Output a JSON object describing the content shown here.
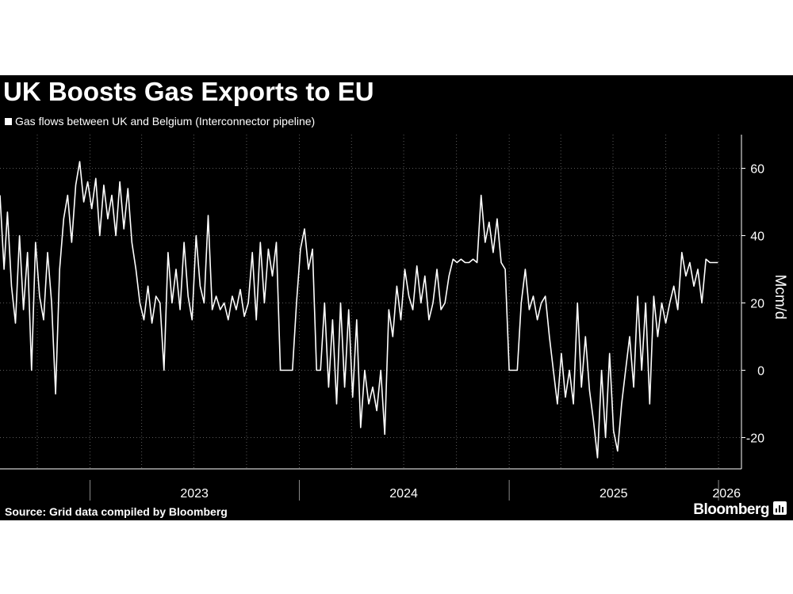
{
  "title": "UK Boosts Gas Exports to EU",
  "legend": {
    "label": "Gas flows between UK and Belgium (Interconnector pipeline)"
  },
  "source": "Source: Grid data compiled by Bloomberg",
  "brand": {
    "name": "Bloomberg",
    "icon": "bloomberg-bars-icon"
  },
  "colors": {
    "background": "#000000",
    "line": "#ffffff",
    "grid": "#5a5a5a",
    "text": "#ffffff"
  },
  "chart_data": {
    "type": "line",
    "title": "UK Boosts Gas Exports to EU",
    "ylabel": "Mcm/d",
    "xlabel": "",
    "ylim": [
      -30,
      70
    ],
    "yticks": [
      -20,
      0,
      20,
      40,
      60
    ],
    "xlim": [
      "2022-07-28",
      "2026-02-10"
    ],
    "xticks": [
      {
        "label": "2023",
        "date": "2023-07-02"
      },
      {
        "label": "2024",
        "date": "2024-07-01"
      },
      {
        "label": "2025",
        "date": "2025-07-02"
      },
      {
        "label": "2026",
        "date": "2026-01-15"
      }
    ],
    "year_boundaries": [
      "2023-01-01",
      "2024-01-01",
      "2025-01-01",
      "2026-01-01"
    ],
    "grid": true,
    "legend_position": "top-left",
    "series": [
      {
        "name": "Gas flows between UK and Belgium (Interconnector pipeline)",
        "points": [
          [
            "2022-07-28",
            52
          ],
          [
            "2022-08-04",
            30
          ],
          [
            "2022-08-10",
            47
          ],
          [
            "2022-08-17",
            25
          ],
          [
            "2022-08-24",
            14
          ],
          [
            "2022-08-31",
            40
          ],
          [
            "2022-09-07",
            18
          ],
          [
            "2022-09-14",
            35
          ],
          [
            "2022-09-21",
            0
          ],
          [
            "2022-09-28",
            38
          ],
          [
            "2022-10-05",
            22
          ],
          [
            "2022-10-12",
            15
          ],
          [
            "2022-10-19",
            35
          ],
          [
            "2022-10-26",
            20
          ],
          [
            "2022-11-02",
            -7
          ],
          [
            "2022-11-09",
            30
          ],
          [
            "2022-11-16",
            45
          ],
          [
            "2022-11-23",
            52
          ],
          [
            "2022-11-30",
            38
          ],
          [
            "2022-12-07",
            55
          ],
          [
            "2022-12-14",
            62
          ],
          [
            "2022-12-21",
            50
          ],
          [
            "2022-12-28",
            56
          ],
          [
            "2023-01-04",
            48
          ],
          [
            "2023-01-11",
            57
          ],
          [
            "2023-01-18",
            40
          ],
          [
            "2023-01-25",
            55
          ],
          [
            "2023-02-01",
            45
          ],
          [
            "2023-02-08",
            52
          ],
          [
            "2023-02-15",
            40
          ],
          [
            "2023-02-22",
            56
          ],
          [
            "2023-03-01",
            42
          ],
          [
            "2023-03-08",
            54
          ],
          [
            "2023-03-15",
            38
          ],
          [
            "2023-03-22",
            30
          ],
          [
            "2023-03-29",
            20
          ],
          [
            "2023-04-05",
            15
          ],
          [
            "2023-04-12",
            25
          ],
          [
            "2023-04-19",
            14
          ],
          [
            "2023-04-26",
            22
          ],
          [
            "2023-05-03",
            20
          ],
          [
            "2023-05-10",
            0
          ],
          [
            "2023-05-17",
            35
          ],
          [
            "2023-05-24",
            20
          ],
          [
            "2023-05-31",
            30
          ],
          [
            "2023-06-07",
            18
          ],
          [
            "2023-06-14",
            38
          ],
          [
            "2023-06-21",
            22
          ],
          [
            "2023-06-28",
            15
          ],
          [
            "2023-07-05",
            40
          ],
          [
            "2023-07-12",
            25
          ],
          [
            "2023-07-19",
            20
          ],
          [
            "2023-07-26",
            46
          ],
          [
            "2023-08-02",
            18
          ],
          [
            "2023-08-09",
            22
          ],
          [
            "2023-08-16",
            18
          ],
          [
            "2023-08-23",
            20
          ],
          [
            "2023-08-30",
            15
          ],
          [
            "2023-09-06",
            22
          ],
          [
            "2023-09-13",
            18
          ],
          [
            "2023-09-20",
            24
          ],
          [
            "2023-09-27",
            16
          ],
          [
            "2023-10-04",
            20
          ],
          [
            "2023-10-11",
            35
          ],
          [
            "2023-10-18",
            15
          ],
          [
            "2023-10-25",
            38
          ],
          [
            "2023-11-01",
            20
          ],
          [
            "2023-11-08",
            36
          ],
          [
            "2023-11-15",
            28
          ],
          [
            "2023-11-22",
            38
          ],
          [
            "2023-11-29",
            0
          ],
          [
            "2023-12-06",
            0
          ],
          [
            "2023-12-13",
            0
          ],
          [
            "2023-12-20",
            0
          ],
          [
            "2023-12-27",
            20
          ],
          [
            "2024-01-03",
            36
          ],
          [
            "2024-01-10",
            42
          ],
          [
            "2024-01-17",
            30
          ],
          [
            "2024-01-24",
            36
          ],
          [
            "2024-01-31",
            0
          ],
          [
            "2024-02-07",
            0
          ],
          [
            "2024-02-14",
            20
          ],
          [
            "2024-02-21",
            -5
          ],
          [
            "2024-02-28",
            15
          ],
          [
            "2024-03-06",
            -10
          ],
          [
            "2024-03-13",
            20
          ],
          [
            "2024-03-20",
            -5
          ],
          [
            "2024-03-27",
            18
          ],
          [
            "2024-04-03",
            -8
          ],
          [
            "2024-04-10",
            15
          ],
          [
            "2024-04-17",
            -17
          ],
          [
            "2024-04-24",
            0
          ],
          [
            "2024-05-01",
            -10
          ],
          [
            "2024-05-08",
            -5
          ],
          [
            "2024-05-15",
            -12
          ],
          [
            "2024-05-22",
            0
          ],
          [
            "2024-05-29",
            -19
          ],
          [
            "2024-06-05",
            18
          ],
          [
            "2024-06-12",
            10
          ],
          [
            "2024-06-19",
            25
          ],
          [
            "2024-06-26",
            15
          ],
          [
            "2024-07-03",
            30
          ],
          [
            "2024-07-10",
            22
          ],
          [
            "2024-07-17",
            18
          ],
          [
            "2024-07-24",
            31
          ],
          [
            "2024-07-31",
            20
          ],
          [
            "2024-08-07",
            28
          ],
          [
            "2024-08-14",
            15
          ],
          [
            "2024-08-21",
            20
          ],
          [
            "2024-08-28",
            30
          ],
          [
            "2024-09-04",
            18
          ],
          [
            "2024-09-11",
            20
          ],
          [
            "2024-09-18",
            28
          ],
          [
            "2024-09-25",
            33
          ],
          [
            "2024-10-02",
            32
          ],
          [
            "2024-10-09",
            33
          ],
          [
            "2024-10-16",
            32
          ],
          [
            "2024-10-23",
            32
          ],
          [
            "2024-10-30",
            33
          ],
          [
            "2024-11-06",
            32
          ],
          [
            "2024-11-13",
            52
          ],
          [
            "2024-11-20",
            38
          ],
          [
            "2024-11-27",
            44
          ],
          [
            "2024-12-04",
            35
          ],
          [
            "2024-12-11",
            45
          ],
          [
            "2024-12-18",
            32
          ],
          [
            "2024-12-25",
            30
          ],
          [
            "2025-01-01",
            0
          ],
          [
            "2025-01-08",
            0
          ],
          [
            "2025-01-15",
            0
          ],
          [
            "2025-01-22",
            20
          ],
          [
            "2025-01-29",
            30
          ],
          [
            "2025-02-05",
            18
          ],
          [
            "2025-02-12",
            22
          ],
          [
            "2025-02-19",
            15
          ],
          [
            "2025-02-26",
            20
          ],
          [
            "2025-03-05",
            22
          ],
          [
            "2025-03-12",
            10
          ],
          [
            "2025-03-19",
            0
          ],
          [
            "2025-03-26",
            -10
          ],
          [
            "2025-04-02",
            5
          ],
          [
            "2025-04-09",
            -8
          ],
          [
            "2025-04-16",
            0
          ],
          [
            "2025-04-23",
            -10
          ],
          [
            "2025-04-30",
            20
          ],
          [
            "2025-05-07",
            -5
          ],
          [
            "2025-05-14",
            10
          ],
          [
            "2025-05-21",
            -6
          ],
          [
            "2025-05-28",
            -15
          ],
          [
            "2025-06-04",
            -26
          ],
          [
            "2025-06-11",
            0
          ],
          [
            "2025-06-18",
            -20
          ],
          [
            "2025-06-25",
            5
          ],
          [
            "2025-07-02",
            -18
          ],
          [
            "2025-07-09",
            -24
          ],
          [
            "2025-07-16",
            -10
          ],
          [
            "2025-07-23",
            0
          ],
          [
            "2025-07-30",
            10
          ],
          [
            "2025-08-06",
            -5
          ],
          [
            "2025-08-13",
            22
          ],
          [
            "2025-08-20",
            0
          ],
          [
            "2025-08-27",
            20
          ],
          [
            "2025-09-03",
            -10
          ],
          [
            "2025-09-10",
            22
          ],
          [
            "2025-09-17",
            10
          ],
          [
            "2025-09-24",
            20
          ],
          [
            "2025-10-01",
            14
          ],
          [
            "2025-10-08",
            20
          ],
          [
            "2025-10-15",
            25
          ],
          [
            "2025-10-22",
            18
          ],
          [
            "2025-10-29",
            35
          ],
          [
            "2025-11-05",
            28
          ],
          [
            "2025-11-12",
            32
          ],
          [
            "2025-11-19",
            25
          ],
          [
            "2025-11-26",
            30
          ],
          [
            "2025-12-03",
            20
          ],
          [
            "2025-12-10",
            33
          ],
          [
            "2025-12-17",
            32
          ],
          [
            "2025-12-24",
            32
          ],
          [
            "2025-12-31",
            32
          ]
        ]
      }
    ]
  }
}
